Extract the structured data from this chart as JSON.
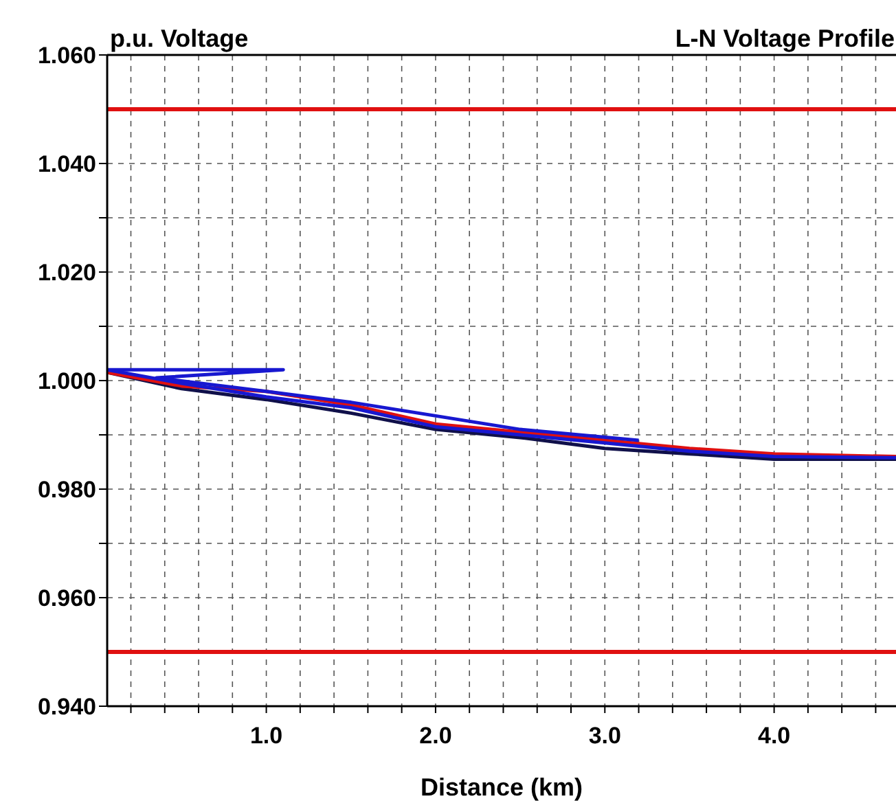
{
  "chart_data": {
    "type": "line",
    "title": "L-N Voltage Profile",
    "xlabel": "Distance (km)",
    "ylabel": "p.u. Voltage",
    "xlim": [
      0.06,
      4.72
    ],
    "ylim": [
      0.94,
      1.06
    ],
    "xticks": [
      {
        "value": 0.2,
        "label": null
      },
      {
        "value": 0.4,
        "label": null
      },
      {
        "value": 0.6,
        "label": null
      },
      {
        "value": 0.8,
        "label": null
      },
      {
        "value": 1.0,
        "label": "1.0"
      },
      {
        "value": 1.2,
        "label": null
      },
      {
        "value": 1.4,
        "label": null
      },
      {
        "value": 1.6,
        "label": null
      },
      {
        "value": 1.8,
        "label": null
      },
      {
        "value": 2.0,
        "label": "2.0"
      },
      {
        "value": 2.2,
        "label": null
      },
      {
        "value": 2.4,
        "label": null
      },
      {
        "value": 2.6,
        "label": null
      },
      {
        "value": 2.8,
        "label": null
      },
      {
        "value": 3.0,
        "label": "3.0"
      },
      {
        "value": 3.2,
        "label": null
      },
      {
        "value": 3.4,
        "label": null
      },
      {
        "value": 3.6,
        "label": null
      },
      {
        "value": 3.8,
        "label": null
      },
      {
        "value": 4.0,
        "label": "4.0"
      },
      {
        "value": 4.2,
        "label": null
      },
      {
        "value": 4.4,
        "label": null
      },
      {
        "value": 4.6,
        "label": null
      }
    ],
    "yticks": [
      {
        "value": 0.94,
        "label": "0.940"
      },
      {
        "value": 0.96,
        "label": "0.960"
      },
      {
        "value": 0.97,
        "label": null
      },
      {
        "value": 0.98,
        "label": "0.980"
      },
      {
        "value": 0.99,
        "label": null
      },
      {
        "value": 1.0,
        "label": "1.000"
      },
      {
        "value": 1.01,
        "label": null
      },
      {
        "value": 1.02,
        "label": "1.020"
      },
      {
        "value": 1.03,
        "label": null
      },
      {
        "value": 1.04,
        "label": "1.040"
      },
      {
        "value": 1.06,
        "label": "1.060"
      }
    ],
    "grid": true,
    "line_style": "solid",
    "marker": "none",
    "ref_lines": [
      {
        "axis": "y",
        "value": 1.05,
        "color": "#e01010"
      },
      {
        "axis": "y",
        "value": 0.95,
        "color": "#e01010"
      }
    ],
    "series": [
      {
        "color": "#10104a",
        "x": [
          0.06,
          0.5,
          1.0,
          1.5,
          2.0,
          2.5,
          3.0,
          3.5,
          4.0,
          4.72
        ],
        "values": [
          1.0015,
          0.9985,
          0.9965,
          0.994,
          0.991,
          0.9895,
          0.9875,
          0.9865,
          0.9855,
          0.9855
        ]
      },
      {
        "color": "#e01010",
        "x": [
          0.06,
          0.5,
          1.0,
          1.5,
          2.0,
          2.5,
          3.0,
          3.5,
          4.0,
          4.72
        ],
        "values": [
          1.0015,
          0.999,
          0.998,
          0.9955,
          0.992,
          0.9905,
          0.989,
          0.9875,
          0.9865,
          0.986
        ]
      },
      {
        "color": "#1818d0",
        "x": [
          0.06,
          0.5,
          1.0,
          1.5,
          2.0,
          2.5,
          3.0,
          3.5,
          4.0,
          4.72
        ],
        "values": [
          1.002,
          0.9995,
          0.997,
          0.995,
          0.9915,
          0.99,
          0.9885,
          0.987,
          0.986,
          0.9858
        ]
      },
      {
        "color": "#1818d0",
        "x": [
          0.06,
          1.1,
          0.35,
          1.0,
          1.5,
          1.9,
          2.5,
          3.2
        ],
        "values": [
          1.002,
          1.002,
          1.0005,
          0.998,
          0.996,
          0.994,
          0.991,
          0.989
        ]
      }
    ]
  }
}
